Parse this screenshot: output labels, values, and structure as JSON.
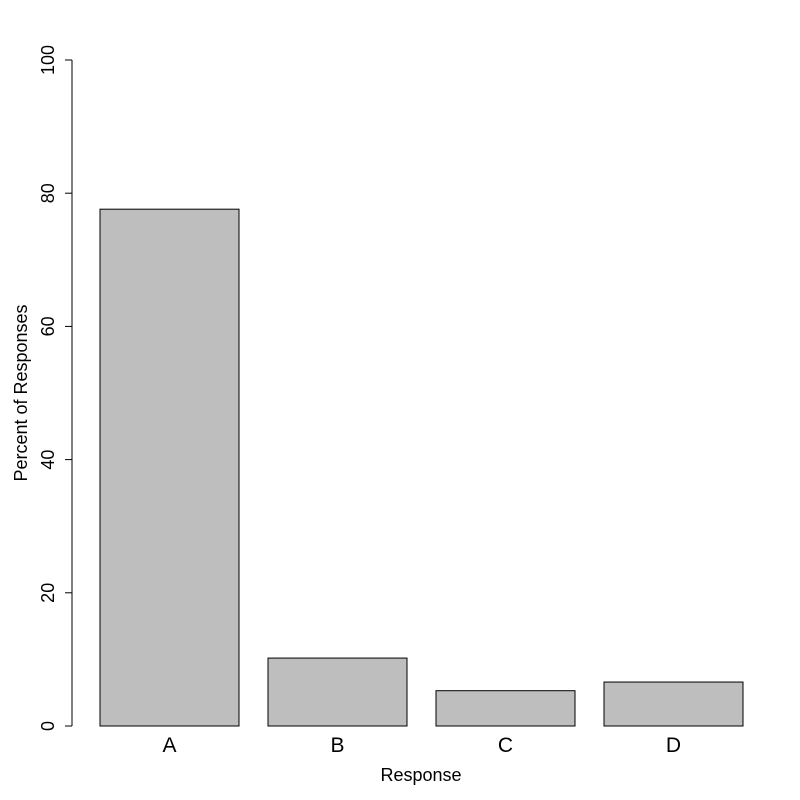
{
  "chart_data": {
    "type": "bar",
    "categories": [
      "A",
      "B",
      "C",
      "D"
    ],
    "values": [
      77.6,
      10.2,
      5.3,
      6.6
    ],
    "color": "#bebebe",
    "x_label": "Response",
    "y_label": "Percent of Responses",
    "ylim": [
      0,
      100
    ],
    "yticks": [
      0,
      20,
      40,
      60,
      80,
      100
    ],
    "grid": false
  }
}
